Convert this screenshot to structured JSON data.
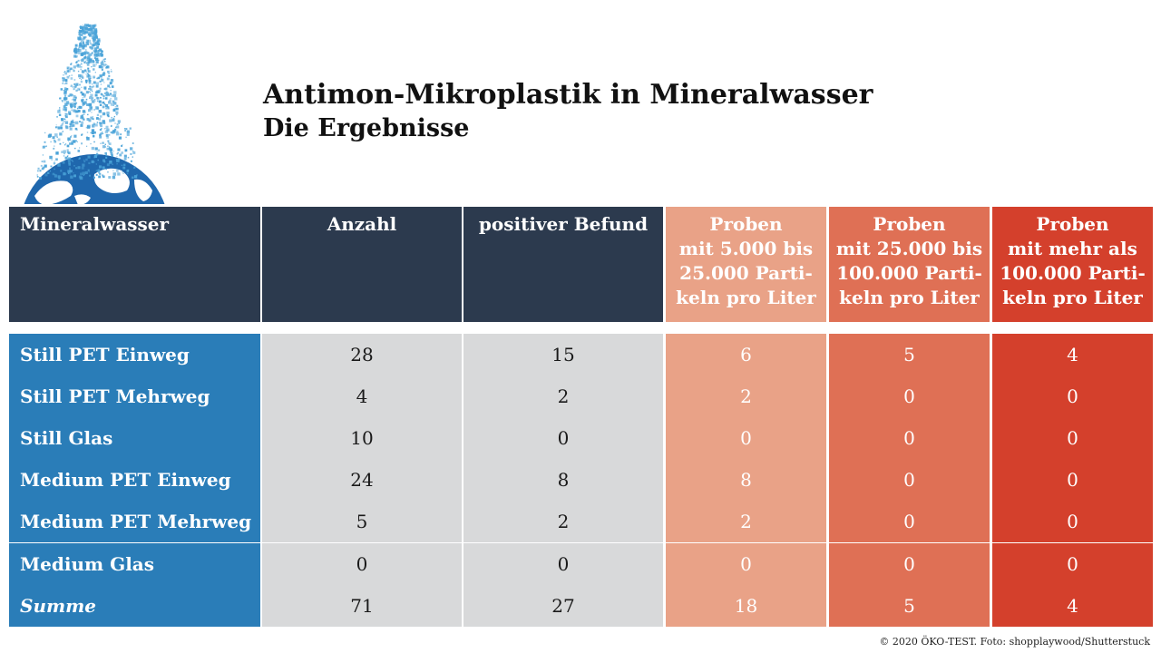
{
  "header": {
    "title": "Antimon-Mikroplastik in Mineralwasser",
    "subtitle": "Die Ergebnisse"
  },
  "illustration": {
    "icon": "bottle-particles-over-globe-icon"
  },
  "colors": {
    "header_dark": "#2c3a4e",
    "row_label_blue": "#2a7db8",
    "neutral_gray": "#d8d9da",
    "salmon_light": "#e9a287",
    "salmon_mid": "#df7055",
    "red": "#d4402c",
    "globe_blue": "#1f67ad",
    "particle_blue": "#4aa3d8"
  },
  "chart_data": {
    "type": "table",
    "title": "Antimon-Mikroplastik in Mineralwasser",
    "subtitle": "Die Ergebnisse",
    "columns": [
      "Mineralwasser",
      "Anzahl",
      "positiver Befund",
      "Proben\nmit 5.000 bis\n25.000 Parti-\nkeln pro Liter",
      "Proben\nmit 25.000 bis\n100.000 Parti-\nkeln pro Liter",
      "Proben\nmit mehr als\n100.000 Parti-\nkeln pro Liter"
    ],
    "rows": [
      {
        "label": "Still PET Einweg",
        "values": [
          "28",
          "15",
          "6",
          "5",
          "4"
        ]
      },
      {
        "label": "Still PET Mehrweg",
        "values": [
          "4",
          "2",
          "2",
          "0",
          "0"
        ]
      },
      {
        "label": "Still Glas",
        "values": [
          "10",
          "0",
          "0",
          "0",
          "0"
        ]
      },
      {
        "label": "Medium PET Einweg",
        "values": [
          "24",
          "8",
          "8",
          "0",
          "0"
        ]
      },
      {
        "label": "Medium PET Mehrweg",
        "values": [
          "5",
          "2",
          "2",
          "0",
          "0"
        ]
      },
      {
        "label": "Medium Glas",
        "values": [
          "0",
          "0",
          "0",
          "0",
          "0"
        ]
      },
      {
        "label": "Summe",
        "values": [
          "71",
          "27",
          "18",
          "5",
          "4"
        ],
        "italic": true
      }
    ]
  },
  "footer": {
    "credit": "© 2020 ÖKO-TEST. Foto: shopplaywood/Shutterstuck"
  }
}
